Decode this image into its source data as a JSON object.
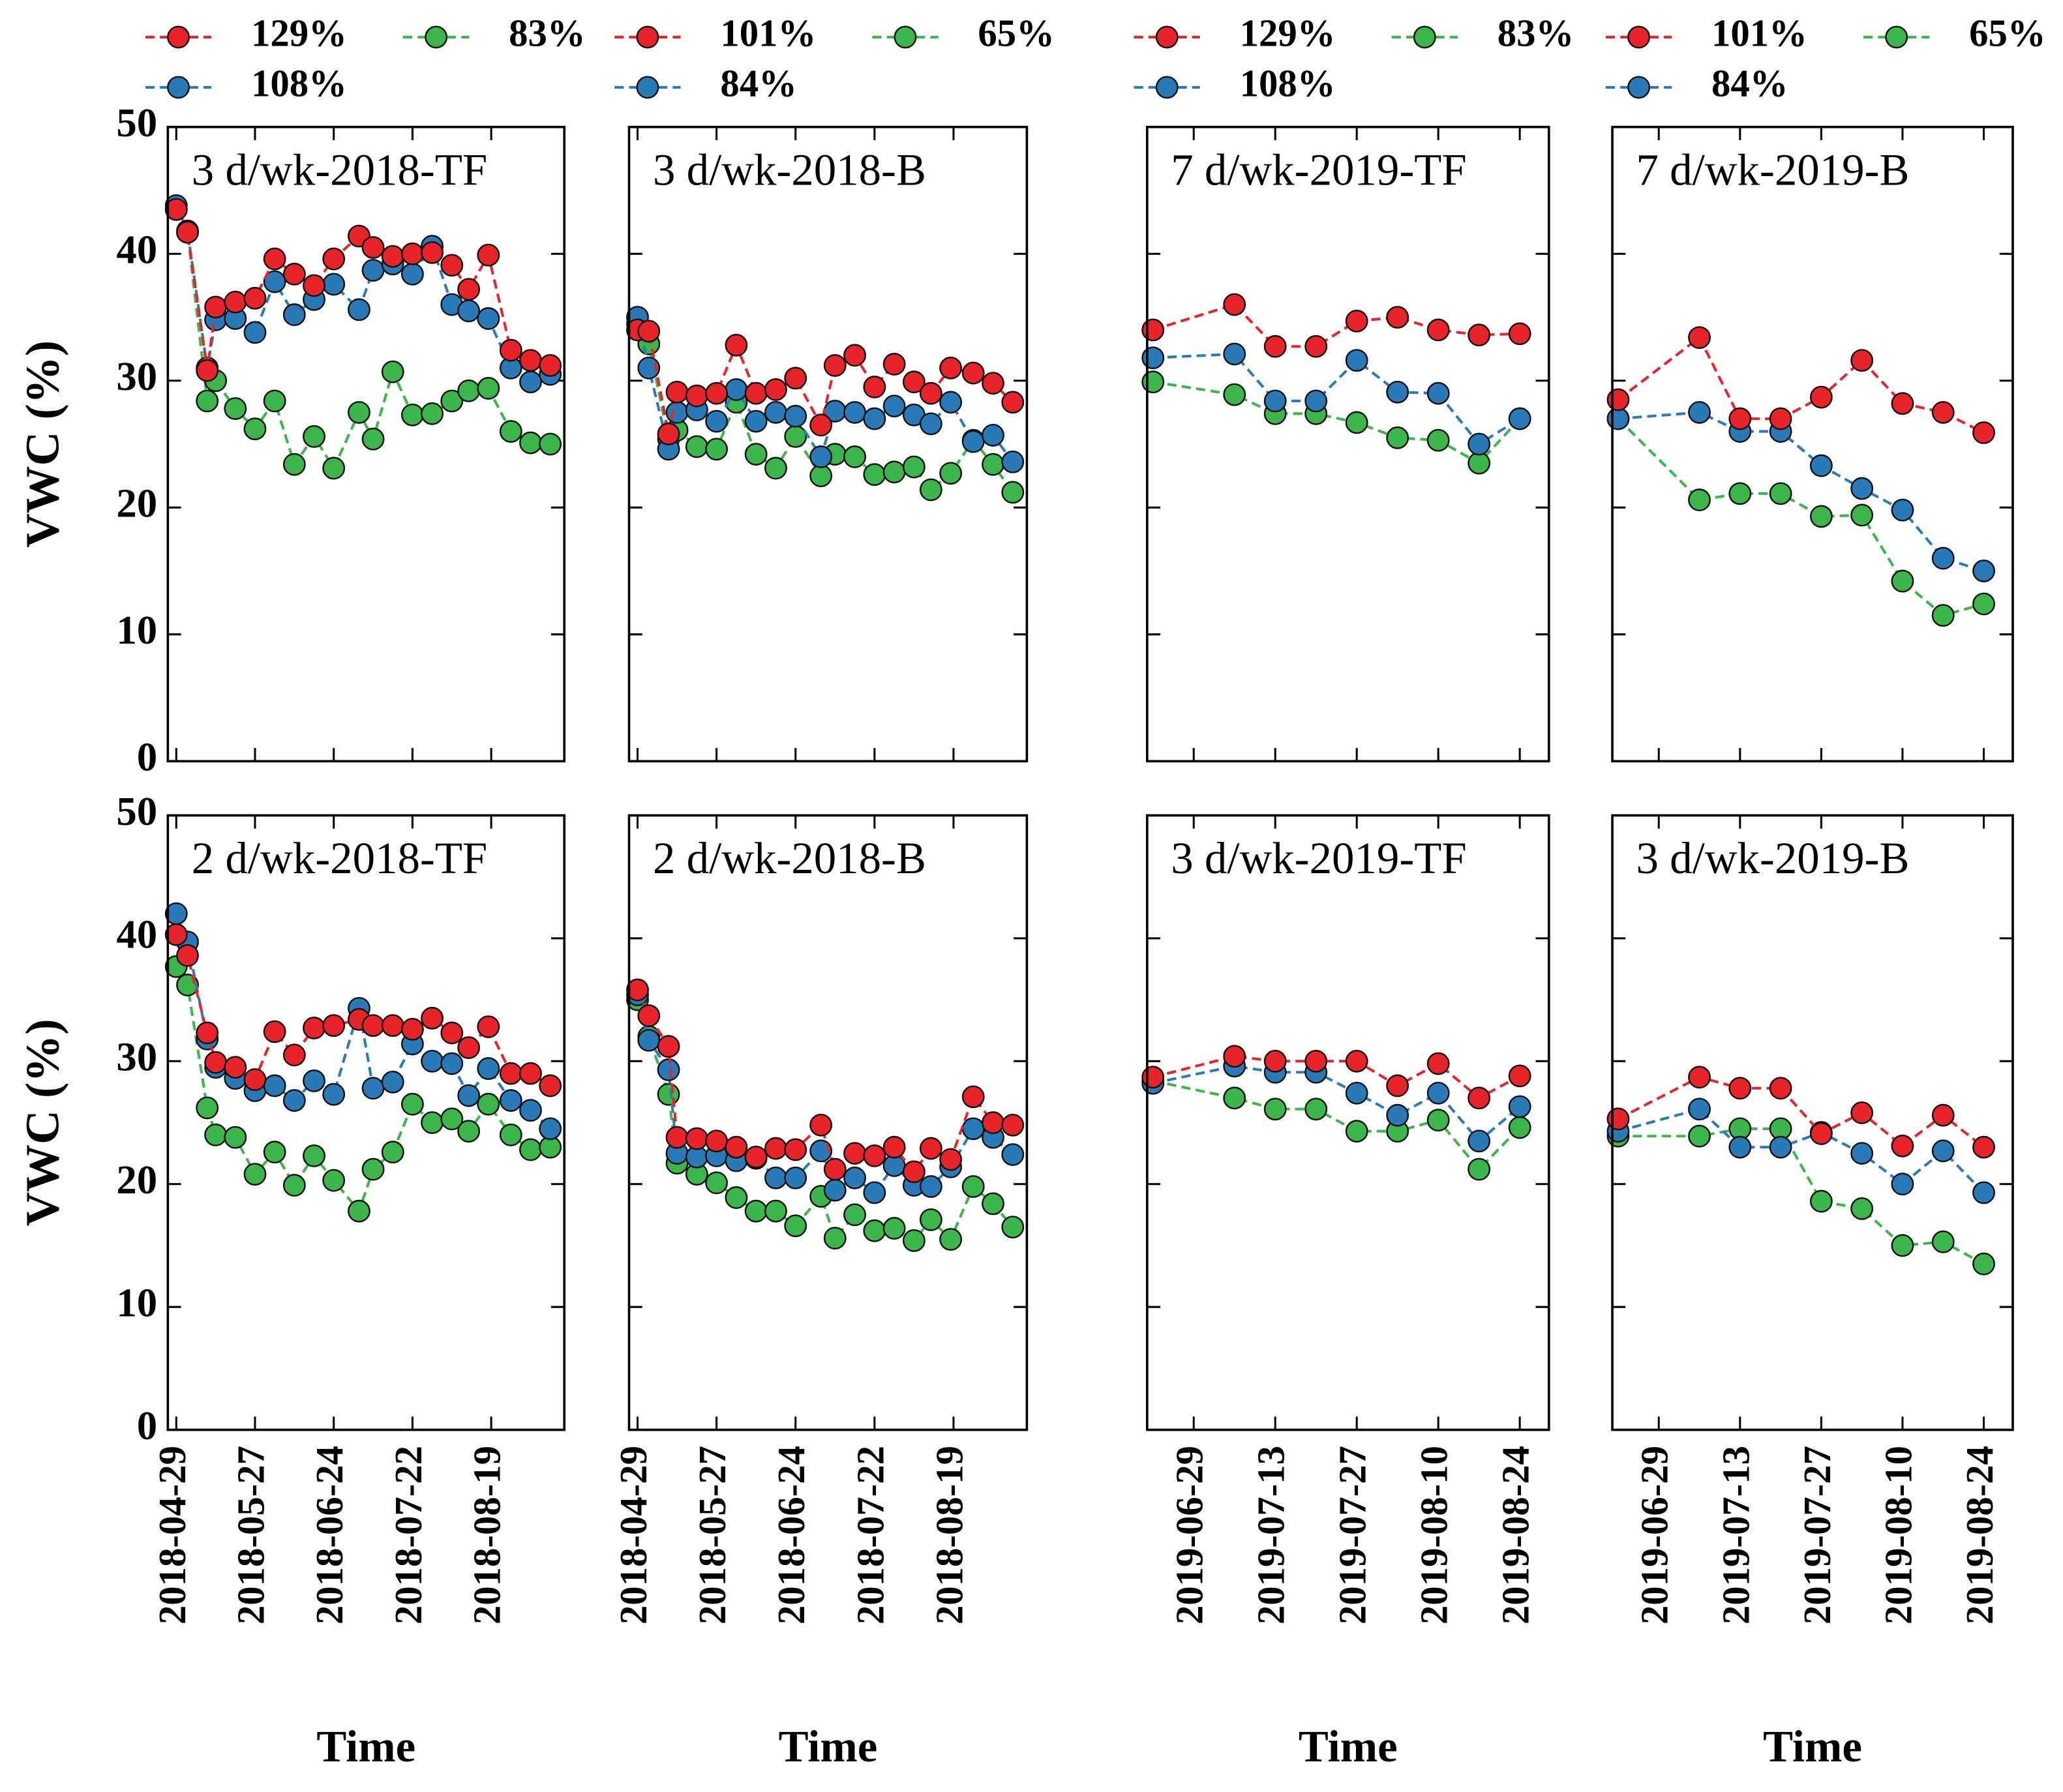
{
  "chart_data": [
    {
      "type": "line",
      "title": "3 d/wk-2018-TF",
      "ylabel": "VWC (%)",
      "x": [
        "2018-04-29",
        "2018-05-03",
        "2018-05-10",
        "2018-05-13",
        "2018-05-20",
        "2018-05-27",
        "2018-06-03",
        "2018-06-10",
        "2018-06-17",
        "2018-06-24",
        "2018-07-03",
        "2018-07-08",
        "2018-07-15",
        "2018-07-22",
        "2018-07-29",
        "2018-08-05",
        "2018-08-11",
        "2018-08-18",
        "2018-08-26",
        "2018-09-02",
        "2018-09-09"
      ],
      "xlim": [
        "2018-04-26",
        "2018-09-14"
      ],
      "xticks": [
        "2018-04-29",
        "2018-05-27",
        "2018-06-24",
        "2018-07-22",
        "2018-08-19"
      ],
      "ylim": [
        0,
        50
      ],
      "yticks": [
        0,
        10,
        20,
        30,
        40,
        50
      ],
      "series": [
        {
          "name": "129%",
          "color": "#e8242b",
          "values": [
            43.5,
            41.7,
            30.8,
            35.8,
            36.2,
            36.5,
            39.6,
            38.4,
            37.5,
            39.6,
            41.4,
            40.5,
            39.8,
            40.0,
            40.1,
            39.1,
            37.2,
            39.9,
            32.4,
            31.6,
            31.2
          ]
        },
        {
          "name": "108%",
          "color": "#2a7ab8",
          "values": [
            43.8,
            41.8,
            31.0,
            34.8,
            34.9,
            33.8,
            37.8,
            35.2,
            36.4,
            37.6,
            35.6,
            38.7,
            39.2,
            38.4,
            40.6,
            36.0,
            35.5,
            34.9,
            31.0,
            29.9,
            30.5
          ]
        },
        {
          "name": "83%",
          "color": "#3cb54a",
          "values": [
            43.5,
            41.7,
            28.4,
            30.0,
            27.8,
            26.2,
            28.4,
            23.4,
            25.6,
            23.1,
            27.5,
            25.4,
            30.7,
            27.3,
            27.4,
            28.4,
            29.2,
            29.4,
            26.0,
            25.1,
            25.0
          ]
        }
      ]
    },
    {
      "type": "line",
      "title": "3 d/wk-2018-B",
      "x": [
        "2018-04-29",
        "2018-05-03",
        "2018-05-10",
        "2018-05-13",
        "2018-05-20",
        "2018-05-27",
        "2018-06-03",
        "2018-06-10",
        "2018-06-17",
        "2018-06-24",
        "2018-07-03",
        "2018-07-08",
        "2018-07-15",
        "2018-07-22",
        "2018-07-29",
        "2018-08-05",
        "2018-08-11",
        "2018-08-18",
        "2018-08-26",
        "2018-09-02",
        "2018-09-09"
      ],
      "xlim": [
        "2018-04-26",
        "2018-09-14"
      ],
      "xticks": [
        "2018-04-29",
        "2018-05-27",
        "2018-06-24",
        "2018-07-22",
        "2018-08-19"
      ],
      "ylim": [
        0,
        50
      ],
      "yticks": [
        0,
        10,
        20,
        30,
        40,
        50
      ],
      "series": [
        {
          "name": "101%",
          "color": "#e8242b",
          "values": [
            34.0,
            33.9,
            25.8,
            29.1,
            28.8,
            29.0,
            32.8,
            29.0,
            29.3,
            30.2,
            26.5,
            31.2,
            32.0,
            29.5,
            31.3,
            29.9,
            29.0,
            31.0,
            30.6,
            29.8,
            28.3
          ]
        },
        {
          "name": "84%",
          "color": "#2a7ab8",
          "values": [
            35.0,
            31.0,
            24.6,
            27.5,
            27.7,
            26.8,
            29.3,
            26.8,
            27.5,
            27.2,
            24.0,
            27.6,
            27.5,
            27.0,
            28.0,
            27.3,
            26.6,
            28.3,
            25.2,
            25.7,
            23.6
          ]
        },
        {
          "name": "65%",
          "color": "#3cb54a",
          "values": [
            34.5,
            32.9,
            25.4,
            26.1,
            24.8,
            24.6,
            28.3,
            24.2,
            23.1,
            25.6,
            22.5,
            24.2,
            24.0,
            22.6,
            22.8,
            23.2,
            21.4,
            22.7,
            25.3,
            23.4,
            21.2
          ]
        }
      ]
    },
    {
      "type": "line",
      "title": "7 d/wk-2019-TF",
      "x": [
        "2019-06-22",
        "2019-07-06",
        "2019-07-13",
        "2019-07-20",
        "2019-07-27",
        "2019-08-03",
        "2019-08-10",
        "2019-08-17",
        "2019-08-24"
      ],
      "xlim": [
        "2019-06-21",
        "2019-08-29"
      ],
      "xticks": [
        "2019-06-29",
        "2019-07-13",
        "2019-07-27",
        "2019-08-10",
        "2019-08-24"
      ],
      "ylim": [
        0,
        50
      ],
      "yticks": [
        0,
        10,
        20,
        30,
        40,
        50
      ],
      "series": [
        {
          "name": "129%",
          "color": "#e8242b",
          "values": [
            34.0,
            36.0,
            32.7,
            32.7,
            34.7,
            35.0,
            34.0,
            33.6,
            33.7
          ]
        },
        {
          "name": "108%",
          "color": "#2a7ab8",
          "values": [
            31.8,
            32.1,
            28.4,
            28.4,
            31.6,
            29.1,
            29.0,
            25.0,
            27.0
          ]
        },
        {
          "name": "83%",
          "color": "#3cb54a",
          "values": [
            29.9,
            28.9,
            27.4,
            27.4,
            26.7,
            25.5,
            25.3,
            23.5,
            27.0
          ]
        }
      ]
    },
    {
      "type": "line",
      "title": "7 d/wk-2019-B",
      "x": [
        "2019-06-22",
        "2019-07-06",
        "2019-07-13",
        "2019-07-20",
        "2019-07-27",
        "2019-08-03",
        "2019-08-10",
        "2019-08-17",
        "2019-08-24"
      ],
      "xlim": [
        "2019-06-21",
        "2019-08-29"
      ],
      "xticks": [
        "2019-06-29",
        "2019-07-13",
        "2019-07-27",
        "2019-08-10",
        "2019-08-24"
      ],
      "ylim": [
        0,
        50
      ],
      "yticks": [
        0,
        10,
        20,
        30,
        40,
        50
      ],
      "series": [
        {
          "name": "101%",
          "color": "#e8242b",
          "values": [
            28.5,
            33.4,
            27.0,
            27.0,
            28.7,
            31.6,
            28.2,
            27.5,
            25.9
          ]
        },
        {
          "name": "84%",
          "color": "#2a7ab8",
          "values": [
            27.0,
            27.5,
            26.0,
            26.0,
            23.3,
            21.5,
            19.8,
            16.0,
            15.0
          ]
        },
        {
          "name": "65%",
          "color": "#3cb54a",
          "values": [
            27.0,
            20.6,
            21.1,
            21.1,
            19.3,
            19.4,
            14.2,
            11.5,
            12.4
          ]
        }
      ]
    },
    {
      "type": "line",
      "title": "2 d/wk-2018-TF",
      "ylabel": "VWC (%)",
      "xlabel": "Time",
      "x": [
        "2018-04-29",
        "2018-05-03",
        "2018-05-10",
        "2018-05-13",
        "2018-05-20",
        "2018-05-27",
        "2018-06-03",
        "2018-06-10",
        "2018-06-17",
        "2018-06-24",
        "2018-07-03",
        "2018-07-08",
        "2018-07-15",
        "2018-07-22",
        "2018-07-29",
        "2018-08-05",
        "2018-08-11",
        "2018-08-18",
        "2018-08-26",
        "2018-09-02",
        "2018-09-09"
      ],
      "xlim": [
        "2018-04-26",
        "2018-09-14"
      ],
      "xticks": [
        "2018-04-29",
        "2018-05-27",
        "2018-06-24",
        "2018-07-22",
        "2018-08-19"
      ],
      "ylim": [
        0,
        50
      ],
      "yticks": [
        0,
        10,
        20,
        30,
        40,
        50
      ],
      "series": [
        {
          "color": "#e8242b",
          "values": [
            40.3,
            38.6,
            32.3,
            29.9,
            29.5,
            28.5,
            32.4,
            30.5,
            32.7,
            32.9,
            33.4,
            32.9,
            32.9,
            32.6,
            33.5,
            32.3,
            31.1,
            32.8,
            29.0,
            29.0,
            28.0
          ]
        },
        {
          "color": "#2a7ab8",
          "values": [
            42.0,
            39.7,
            31.8,
            29.5,
            28.6,
            27.6,
            28.0,
            26.8,
            28.4,
            27.3,
            34.3,
            27.8,
            28.3,
            31.4,
            30.0,
            29.8,
            27.2,
            29.4,
            26.8,
            26.0,
            24.5
          ]
        },
        {
          "color": "#3cb54a",
          "values": [
            37.7,
            36.2,
            26.2,
            24.0,
            23.8,
            20.8,
            22.6,
            19.9,
            22.3,
            20.3,
            17.8,
            21.2,
            22.6,
            26.5,
            25.0,
            25.3,
            24.3,
            26.5,
            24.0,
            22.8,
            23.0
          ]
        }
      ]
    },
    {
      "type": "line",
      "title": "2 d/wk-2018-B",
      "xlabel": "Time",
      "x": [
        "2018-04-29",
        "2018-05-03",
        "2018-05-10",
        "2018-05-13",
        "2018-05-20",
        "2018-05-27",
        "2018-06-03",
        "2018-06-10",
        "2018-06-17",
        "2018-06-24",
        "2018-07-03",
        "2018-07-08",
        "2018-07-15",
        "2018-07-22",
        "2018-07-29",
        "2018-08-05",
        "2018-08-11",
        "2018-08-18",
        "2018-08-26",
        "2018-09-02",
        "2018-09-09"
      ],
      "xlim": [
        "2018-04-26",
        "2018-09-14"
      ],
      "xticks": [
        "2018-04-29",
        "2018-05-27",
        "2018-06-24",
        "2018-07-22",
        "2018-08-19"
      ],
      "ylim": [
        0,
        50
      ],
      "yticks": [
        0,
        10,
        20,
        30,
        40,
        50
      ],
      "series": [
        {
          "color": "#e8242b",
          "values": [
            35.8,
            33.7,
            31.2,
            23.8,
            23.7,
            23.5,
            23.0,
            22.2,
            22.9,
            22.8,
            24.8,
            21.2,
            22.5,
            22.3,
            23.0,
            21.0,
            22.9,
            22.0,
            27.1,
            25.0,
            24.8
          ]
        },
        {
          "color": "#2a7ab8",
          "values": [
            35.4,
            31.7,
            29.3,
            22.5,
            22.2,
            22.3,
            21.9,
            22.1,
            20.5,
            20.5,
            22.7,
            19.5,
            20.5,
            19.3,
            21.5,
            19.9,
            19.8,
            21.4,
            24.5,
            23.8,
            22.4
          ]
        },
        {
          "color": "#3cb54a",
          "values": [
            35.0,
            32.0,
            27.3,
            21.7,
            20.8,
            20.1,
            18.9,
            17.8,
            17.8,
            16.6,
            19.0,
            15.6,
            17.5,
            16.2,
            16.4,
            15.4,
            17.1,
            15.5,
            19.8,
            18.4,
            16.5
          ]
        }
      ]
    },
    {
      "type": "line",
      "title": "3 d/wk-2019-TF",
      "xlabel": "Time",
      "x": [
        "2019-06-22",
        "2019-07-06",
        "2019-07-13",
        "2019-07-20",
        "2019-07-27",
        "2019-08-03",
        "2019-08-10",
        "2019-08-17",
        "2019-08-24"
      ],
      "xlim": [
        "2019-06-21",
        "2019-08-29"
      ],
      "xticks": [
        "2019-06-29",
        "2019-07-13",
        "2019-07-27",
        "2019-08-10",
        "2019-08-24"
      ],
      "ylim": [
        0,
        50
      ],
      "yticks": [
        0,
        10,
        20,
        30,
        40,
        50
      ],
      "series": [
        {
          "color": "#e8242b",
          "values": [
            28.7,
            30.4,
            30.0,
            30.0,
            30.0,
            28.0,
            29.8,
            27.0,
            28.8
          ]
        },
        {
          "color": "#2a7ab8",
          "values": [
            28.2,
            29.6,
            29.1,
            29.1,
            27.4,
            25.6,
            27.4,
            23.5,
            26.3
          ]
        },
        {
          "color": "#3cb54a",
          "values": [
            28.4,
            27.0,
            26.1,
            26.1,
            24.3,
            24.3,
            25.2,
            21.2,
            24.6
          ]
        }
      ]
    },
    {
      "type": "line",
      "title": "3 d/wk-2019-B",
      "xlabel": "Time",
      "x": [
        "2019-06-22",
        "2019-07-06",
        "2019-07-13",
        "2019-07-20",
        "2019-07-27",
        "2019-08-03",
        "2019-08-10",
        "2019-08-17",
        "2019-08-24"
      ],
      "xlim": [
        "2019-06-21",
        "2019-08-29"
      ],
      "xticks": [
        "2019-06-29",
        "2019-07-13",
        "2019-07-27",
        "2019-08-10",
        "2019-08-24"
      ],
      "ylim": [
        0,
        50
      ],
      "yticks": [
        0,
        10,
        20,
        30,
        40,
        50
      ],
      "series": [
        {
          "color": "#e8242b",
          "values": [
            25.3,
            28.7,
            27.8,
            27.8,
            24.1,
            25.8,
            23.1,
            25.6,
            23.0
          ]
        },
        {
          "color": "#2a7ab8",
          "values": [
            24.3,
            26.1,
            23.0,
            23.0,
            24.2,
            22.5,
            20.0,
            22.7,
            19.3
          ]
        },
        {
          "color": "#3cb54a",
          "values": [
            23.9,
            23.9,
            24.5,
            24.5,
            18.6,
            18.0,
            15.0,
            15.3,
            13.5
          ]
        }
      ]
    }
  ]
}
